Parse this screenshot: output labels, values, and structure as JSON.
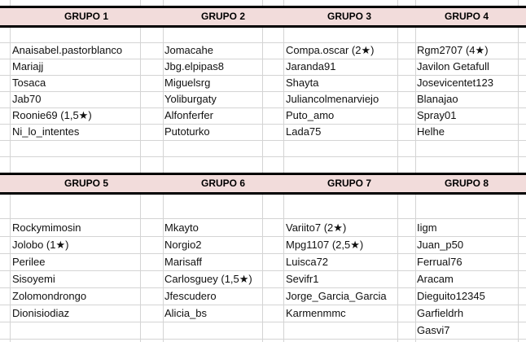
{
  "sheet": {
    "header_color": "#f2dcdb",
    "groups": [
      {
        "title": "GRUPO 1",
        "members": [
          "Anaisabel.pastorblanco",
          "Mariajj",
          "Tosaca",
          "Jab70",
          "Roonie69 (1,5★)",
          "Ni_lo_intentes"
        ]
      },
      {
        "title": "GRUPO 2",
        "members": [
          "Jomacahe",
          "Jbg.elpipas8",
          "Miguelsrg",
          "Yoliburgaty",
          "Alfonferfer",
          "Putoturko"
        ]
      },
      {
        "title": "GRUPO 3",
        "members": [
          "Compa.oscar (2★)",
          "Jaranda91",
          "Shayta",
          "Juliancolmenarviejo",
          "Puto_amo",
          "Lada75"
        ]
      },
      {
        "title": "GRUPO 4",
        "members": [
          "Rgm2707 (4★)",
          "Javilon Getafull",
          "Josevicentet123",
          "Blanajao",
          "Spray01",
          "Helhe"
        ]
      },
      {
        "title": "GRUPO 5",
        "members": [
          "Rockymimosin",
          "Jolobo (1★)",
          "Perilee",
          "Sisoyemi",
          "Zolomondrongo",
          "Dionisiodiaz"
        ]
      },
      {
        "title": "GRUPO 6",
        "members": [
          "Mkayto",
          "Norgio2",
          "Marisaff",
          "Carlosguey (1,5★)",
          "Jfescudero",
          "Alicia_bs"
        ]
      },
      {
        "title": "GRUPO 7",
        "members": [
          "Variito7 (2★)",
          "Mpg1107 (2,5★)",
          "Luisca72",
          "Sevifr1",
          "Jorge_Garcia_Garcia",
          "Karmenmmc"
        ]
      },
      {
        "title": "GRUPO 8",
        "members": [
          "Iigm",
          "Juan_p50",
          "Ferrual76",
          "Aracam",
          "Dieguito12345",
          "Garfieldrh",
          "Gasvi7"
        ]
      }
    ]
  }
}
